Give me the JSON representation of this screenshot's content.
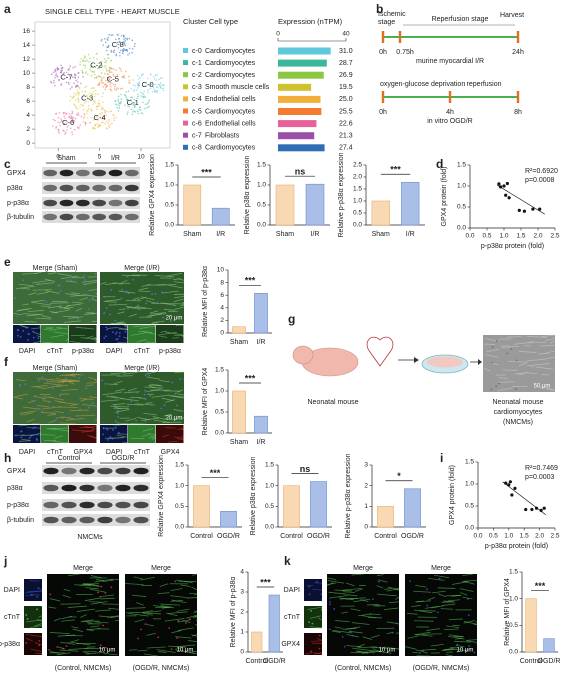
{
  "letters": [
    "a",
    "b",
    "c",
    "d",
    "e",
    "f",
    "g",
    "h",
    "i",
    "j",
    "k"
  ],
  "umap": {
    "title": "SINGLE CELL TYPE - HEART MUSCLE",
    "xlim": [
      -2.8,
      13.5
    ],
    "ylim": [
      -0.7,
      17.3
    ],
    "xticks": [
      0,
      5,
      10
    ],
    "yticks": [
      0,
      2,
      4,
      6,
      8,
      10,
      12,
      14,
      16
    ],
    "cluster_labels": [
      "C-0",
      "C-1",
      "C-2",
      "C-3",
      "C-4",
      "C-5",
      "C-6",
      "C-7",
      "C-8"
    ]
  },
  "cluster_table": {
    "headers": [
      "Cluster Cell type",
      "Expression (nTPM)"
    ],
    "xlim": [
      0,
      40
    ],
    "xticks": [
      0,
      40
    ],
    "rows": [
      {
        "cluster": "c-0",
        "cell_type": "Cardiomyocytes",
        "value": 31.0,
        "value_label": "31.0",
        "color": "#5fc9dc"
      },
      {
        "cluster": "c-1",
        "cell_type": "Cardiomyocytes",
        "value": 28.7,
        "value_label": "28.7",
        "color": "#3bb79b"
      },
      {
        "cluster": "c-2",
        "cell_type": "Cardiomyocytes",
        "value": 26.9,
        "value_label": "26.9",
        "color": "#8dc640"
      },
      {
        "cluster": "c-3",
        "cell_type": "Smooth muscle cells",
        "value": 19.5,
        "value_label": "19.5",
        "color": "#cfc22f"
      },
      {
        "cluster": "c-4",
        "cell_type": "Endothelial cells",
        "value": 25.0,
        "value_label": "25.0",
        "color": "#f2b03a"
      },
      {
        "cluster": "c-5",
        "cell_type": "Cardiomyocytes",
        "value": 25.5,
        "value_label": "25.5",
        "color": "#f37b2f"
      },
      {
        "cluster": "c-6",
        "cell_type": "Endothelial cells",
        "value": 22.6,
        "value_label": "22.6",
        "color": "#e8619b"
      },
      {
        "cluster": "c-7",
        "cell_type": "Fibroblasts",
        "value": 21.3,
        "value_label": "21.3",
        "color": "#9a4fa8"
      },
      {
        "cluster": "c-8",
        "cell_type": "Cardiomyocytes",
        "value": 27.4,
        "value_label": "27.4",
        "color": "#2f6db5"
      }
    ]
  },
  "protocol": {
    "ir": {
      "stage_labels": [
        [
          "Ischemic",
          "stage"
        ],
        [
          "Reperfusion stage"
        ],
        [
          "Harvest"
        ]
      ],
      "times": [
        "0h",
        "0.75h",
        "24h"
      ],
      "caption": "murine myocardial I/R"
    },
    "ogdr": {
      "stage_labels": [
        [
          "oxygen-glucose deprivation"
        ],
        [
          "reperfusion"
        ]
      ],
      "times": [
        "0h",
        "4h",
        "8h"
      ],
      "caption": "in vitro OGD/R"
    }
  },
  "blots": [
    {
      "groups": [
        "Sham",
        "I/R"
      ],
      "proteins": [
        "GPX4",
        "p38α",
        "p-p38α",
        "β-tubulin"
      ]
    },
    {
      "groups": [
        "Control",
        "OGD/R"
      ],
      "proteins": [
        "GPX4",
        "p38α",
        "p-p38α",
        "β-tubulin"
      ],
      "caption": "NMCMs"
    }
  ],
  "if_panels": [
    {
      "merge_titles": [
        "Merge (Sham)",
        "Merge (I/R)"
      ],
      "channels": [
        [
          "DAPI",
          "cTnT",
          "p-p38α"
        ],
        [
          "DAPI",
          "cTnT",
          "p-p38α"
        ]
      ],
      "scale_bar": "20 μm"
    },
    {
      "merge_titles": [
        "Merge (Sham)",
        "Merge (I/R)"
      ],
      "channels": [
        [
          "DAPI",
          "cTnT",
          "GPX4"
        ],
        [
          "DAPI",
          "cTnT",
          "GPX4"
        ]
      ],
      "scale_bar": "20 μm"
    }
  ],
  "schematic": {
    "mouse_label": "Neonatal mouse",
    "cells_label": [
      "Neonatal mouse",
      "cardiomyocytes",
      "(NMCMs)"
    ],
    "scale_bar": "50 μm"
  },
  "cell_panels": [
    {
      "channels": [
        "DAPI",
        "cTnT",
        "p-p38α"
      ],
      "merge_titles": [
        "Merge",
        "Merge"
      ],
      "captions": [
        "(Control, NMCMs)",
        "(OGD/R, NMCMs)"
      ],
      "scale_bars": [
        "10 μm",
        "10 μm"
      ]
    },
    {
      "channels": [
        "DAPI",
        "cTnT",
        "GPX4"
      ],
      "merge_titles": [
        "Merge",
        "Merge"
      ],
      "captions": [
        "(Control, NMCMs)",
        "(OGD/R, NMCMs)"
      ],
      "scale_bars": [
        "10 μm",
        "10 μm"
      ]
    }
  ],
  "charts": [
    {
      "type": "bar",
      "ylabel": "Relative GPX4 expression",
      "categories": [
        "Sham",
        "I/R"
      ],
      "values": [
        1.0,
        0.42
      ],
      "colors": [
        "#f9d9b3",
        "#a9bfe8"
      ],
      "ylim": [
        0,
        1.5
      ],
      "yticks": [
        {
          "value": 0,
          "label": "0.0"
        },
        {
          "value": 0.5,
          "label": "0.5"
        },
        {
          "value": 1,
          "label": "1.0"
        },
        {
          "value": 1.5,
          "label": "1.5"
        }
      ],
      "significance": "***"
    },
    {
      "type": "bar",
      "ylabel": "Relative p38α expression",
      "categories": [
        "Sham",
        "I/R"
      ],
      "values": [
        1.0,
        1.02
      ],
      "colors": [
        "#f9d9b3",
        "#a9bfe8"
      ],
      "ylim": [
        0,
        1.5
      ],
      "yticks": [
        {
          "value": 0,
          "label": "0.0"
        },
        {
          "value": 0.5,
          "label": "0.5"
        },
        {
          "value": 1,
          "label": "1.0"
        },
        {
          "value": 1.5,
          "label": "1.5"
        }
      ],
      "significance": "ns"
    },
    {
      "type": "bar",
      "ylabel": "Relative p-p38α expression",
      "categories": [
        "Sham",
        "I/R"
      ],
      "values": [
        1.0,
        1.78
      ],
      "colors": [
        "#f9d9b3",
        "#a9bfe8"
      ],
      "ylim": [
        0,
        2.5
      ],
      "yticks": [
        {
          "value": 0,
          "label": "0.0"
        },
        {
          "value": 0.5,
          "label": "0.5"
        },
        {
          "value": 1,
          "label": "1.0"
        },
        {
          "value": 1.5,
          "label": "1.5"
        },
        {
          "value": 2,
          "label": "2.0"
        },
        {
          "value": 2.5,
          "label": "2.5"
        }
      ],
      "significance": "***"
    },
    {
      "type": "scatter",
      "xlabel": "p-p38α protein (fold)",
      "ylabel": "GPX4 protein (fold)",
      "x": [
        0.85,
        0.9,
        1.0,
        1.1,
        1.05,
        1.15,
        1.45,
        1.6,
        1.85,
        2.05
      ],
      "y": [
        1.05,
        0.98,
        1.0,
        1.06,
        0.78,
        0.72,
        0.42,
        0.4,
        0.45,
        0.45
      ],
      "xlim": [
        0,
        2.5
      ],
      "ylim": [
        0,
        1.5
      ],
      "xticks": [
        {
          "value": 0,
          "label": "0.0"
        },
        {
          "value": 0.5,
          "label": "0.5"
        },
        {
          "value": 1,
          "label": "1.0"
        },
        {
          "value": 1.5,
          "label": "1.5"
        },
        {
          "value": 2,
          "label": "2.0"
        },
        {
          "value": 2.5,
          "label": "2.5"
        }
      ],
      "yticks": [
        {
          "value": 0,
          "label": "0.0"
        },
        {
          "value": 0.5,
          "label": "0.5"
        },
        {
          "value": 1,
          "label": "1.0"
        },
        {
          "value": 1.5,
          "label": "1.5"
        }
      ],
      "fit": {
        "x": [
          0.8,
          2.2
        ],
        "y": [
          1.02,
          0.33
        ]
      },
      "annotation": [
        "R²=0.6920",
        "p=0.0008"
      ]
    },
    {
      "type": "bar",
      "ylabel": "Relative MFI of p-p38α",
      "categories": [
        "Sham",
        "I/R"
      ],
      "values": [
        1.0,
        6.3
      ],
      "colors": [
        "#f9d9b3",
        "#a9bfe8"
      ],
      "ylim": [
        0,
        10
      ],
      "yticks": [
        0,
        2,
        4,
        6,
        8,
        10
      ],
      "significance": "***"
    },
    {
      "type": "bar",
      "ylabel": "Relative MFI of GPX4",
      "categories": [
        "Sham",
        "I/R"
      ],
      "values": [
        1.0,
        0.4
      ],
      "colors": [
        "#f9d9b3",
        "#a9bfe8"
      ],
      "ylim": [
        0,
        1.5
      ],
      "yticks": [
        {
          "value": 0,
          "label": "0.0"
        },
        {
          "value": 0.5,
          "label": "0.5"
        },
        {
          "value": 1,
          "label": "1.0"
        },
        {
          "value": 1.5,
          "label": "1.5"
        }
      ],
      "significance": "***"
    },
    {
      "type": "bar",
      "ylabel": "Relative GPX4 expression",
      "categories": [
        "Control",
        "OGD/R"
      ],
      "values": [
        1.0,
        0.38
      ],
      "colors": [
        "#f9d9b3",
        "#a9bfe8"
      ],
      "ylim": [
        0,
        1.5
      ],
      "yticks": [
        {
          "value": 0,
          "label": "0.0"
        },
        {
          "value": 0.5,
          "label": "0.5"
        },
        {
          "value": 1,
          "label": "1.0"
        },
        {
          "value": 1.5,
          "label": "1.5"
        }
      ],
      "significance": "***"
    },
    {
      "type": "bar",
      "ylabel": "Relative p38α expression",
      "categories": [
        "Control",
        "OGD/R"
      ],
      "values": [
        1.0,
        1.1
      ],
      "colors": [
        "#f9d9b3",
        "#a9bfe8"
      ],
      "ylim": [
        0,
        1.5
      ],
      "yticks": [
        {
          "value": 0,
          "label": "0.0"
        },
        {
          "value": 0.5,
          "label": "0.5"
        },
        {
          "value": 1,
          "label": "1.0"
        },
        {
          "value": 1.5,
          "label": "1.5"
        }
      ],
      "significance": "ns"
    },
    {
      "type": "bar",
      "ylabel": "Relative p-p38α expression",
      "categories": [
        "Control",
        "OGD/R"
      ],
      "values": [
        1.0,
        1.85
      ],
      "colors": [
        "#f9d9b3",
        "#a9bfe8"
      ],
      "ylim": [
        0,
        3
      ],
      "yticks": [
        0,
        1,
        2,
        3
      ],
      "significance": "*"
    },
    {
      "type": "scatter",
      "xlabel": "p-p38α protein (fold)",
      "ylabel": "GPX4 protein (fold)",
      "x": [
        0.9,
        1.0,
        1.05,
        1.2,
        1.1,
        1.55,
        1.75,
        1.9,
        2.05,
        2.15
      ],
      "y": [
        1.02,
        0.98,
        1.05,
        0.9,
        0.75,
        0.42,
        0.42,
        0.45,
        0.4,
        0.45
      ],
      "xlim": [
        0,
        2.5
      ],
      "ylim": [
        0,
        1.5
      ],
      "xticks": [
        {
          "value": 0,
          "label": "0.0"
        },
        {
          "value": 0.5,
          "label": "0.5"
        },
        {
          "value": 1,
          "label": "1.0"
        },
        {
          "value": 1.5,
          "label": "1.5"
        },
        {
          "value": 2,
          "label": "2.0"
        },
        {
          "value": 2.5,
          "label": "2.5"
        }
      ],
      "yticks": [
        {
          "value": 0,
          "label": "0.0"
        },
        {
          "value": 0.5,
          "label": "0.5"
        },
        {
          "value": 1,
          "label": "1.0"
        },
        {
          "value": 1.5,
          "label": "1.5"
        }
      ],
      "fit": {
        "x": [
          0.8,
          2.2
        ],
        "y": [
          1.05,
          0.3
        ]
      },
      "annotation": [
        "R²=0.7469",
        "p=0.0003"
      ]
    },
    {
      "type": "bar",
      "ylabel": "Relative MFI of p-p38α",
      "categories": [
        "Control",
        "OGD/R"
      ],
      "values": [
        1.0,
        2.85
      ],
      "colors": [
        "#f9d9b3",
        "#a9bfe8"
      ],
      "ylim": [
        0,
        4
      ],
      "yticks": [
        0,
        1,
        2,
        3,
        4
      ],
      "significance": "***"
    },
    {
      "type": "bar",
      "ylabel": "Relative MFI of GPX4",
      "categories": [
        "Control",
        "OGD/R"
      ],
      "values": [
        1.0,
        0.25
      ],
      "colors": [
        "#f9d9b3",
        "#a9bfe8"
      ],
      "ylim": [
        0,
        1.5
      ],
      "yticks": [
        {
          "value": 0,
          "label": "0.0"
        },
        {
          "value": 0.5,
          "label": "0.5"
        },
        {
          "value": 1,
          "label": "1.0"
        },
        {
          "value": 1.5,
          "label": "1.5"
        }
      ],
      "significance": "***"
    }
  ]
}
